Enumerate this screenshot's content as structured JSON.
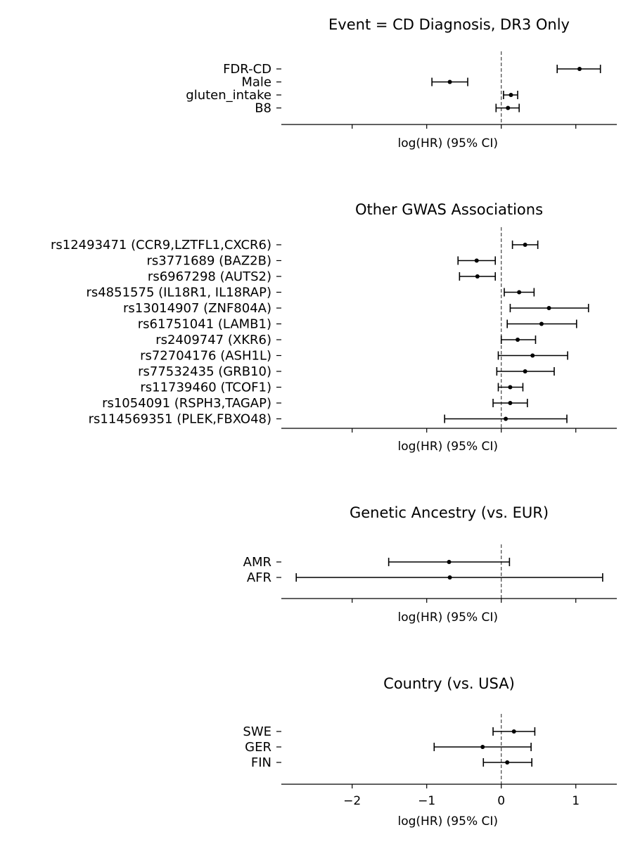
{
  "colors": {
    "marker": "#000000",
    "axis": "#000000",
    "reference_line": "#444444"
  },
  "chart_data": [
    {
      "type": "forest",
      "title": "Event = CD Diagnosis, DR3 Only",
      "xlabel": "log(HR) (95% CI)",
      "reference_line_x": 0,
      "xlim": [
        -2.95,
        1.55
      ],
      "show_tick_labels": false,
      "rows": [
        {
          "label": "FDR-CD",
          "estimate": 1.05,
          "lower": 0.75,
          "upper": 1.33
        },
        {
          "label": "Male",
          "estimate": -0.69,
          "lower": -0.93,
          "upper": -0.45
        },
        {
          "label": "gluten_intake",
          "estimate": 0.13,
          "lower": 0.03,
          "upper": 0.22
        },
        {
          "label": "B8",
          "estimate": 0.09,
          "lower": -0.07,
          "upper": 0.24
        }
      ]
    },
    {
      "type": "forest",
      "title": "Other GWAS Associations",
      "xlabel": "log(HR) (95% CI)",
      "reference_line_x": 0,
      "xlim": [
        -2.95,
        1.55
      ],
      "show_tick_labels": false,
      "rows": [
        {
          "label": "rs12493471 (CCR9,LZTFL1,CXCR6)",
          "estimate": 0.32,
          "lower": 0.15,
          "upper": 0.49
        },
        {
          "label": "rs3771689 (BAZ2B)",
          "estimate": -0.33,
          "lower": -0.58,
          "upper": -0.08
        },
        {
          "label": "rs6967298 (AUTS2)",
          "estimate": -0.32,
          "lower": -0.56,
          "upper": -0.08
        },
        {
          "label": "rs4851575 (IL18R1, IL18RAP)",
          "estimate": 0.24,
          "lower": 0.04,
          "upper": 0.44
        },
        {
          "label": "rs13014907 (ZNF804A)",
          "estimate": 0.64,
          "lower": 0.12,
          "upper": 1.17
        },
        {
          "label": "rs61751041 (LAMB1)",
          "estimate": 0.54,
          "lower": 0.08,
          "upper": 1.01
        },
        {
          "label": "rs2409747 (XKR6)",
          "estimate": 0.22,
          "lower": 0.0,
          "upper": 0.46
        },
        {
          "label": "rs72704176 (ASH1L)",
          "estimate": 0.42,
          "lower": -0.04,
          "upper": 0.89
        },
        {
          "label": "rs77532435 (GRB10)",
          "estimate": 0.32,
          "lower": -0.06,
          "upper": 0.71
        },
        {
          "label": "rs11739460 (TCOF1)",
          "estimate": 0.12,
          "lower": -0.04,
          "upper": 0.29
        },
        {
          "label": "rs1054091 (RSPH3,TAGAP)",
          "estimate": 0.12,
          "lower": -0.11,
          "upper": 0.35
        },
        {
          "label": "rs114569351 (PLEK,FBXO48)",
          "estimate": 0.06,
          "lower": -0.76,
          "upper": 0.88
        }
      ]
    },
    {
      "type": "forest",
      "title": "Genetic Ancestry (vs. EUR)",
      "xlabel": "log(HR) (95% CI)",
      "reference_line_x": 0,
      "xlim": [
        -2.95,
        1.55
      ],
      "show_tick_labels": false,
      "rows": [
        {
          "label": "AMR",
          "estimate": -0.7,
          "lower": -1.51,
          "upper": 0.11
        },
        {
          "label": "AFR",
          "estimate": -0.69,
          "lower": -2.75,
          "upper": 1.36
        }
      ]
    },
    {
      "type": "forest",
      "title": "Country (vs. USA)",
      "xlabel": "log(HR) (95% CI)",
      "reference_line_x": 0,
      "xlim": [
        -2.95,
        1.55
      ],
      "show_tick_labels": true,
      "xticks": [
        -2,
        -1,
        0,
        1
      ],
      "xtick_labels": [
        "−2",
        "−1",
        "0",
        "1"
      ],
      "rows": [
        {
          "label": "SWE",
          "estimate": 0.17,
          "lower": -0.11,
          "upper": 0.45
        },
        {
          "label": "GER",
          "estimate": -0.25,
          "lower": -0.9,
          "upper": 0.4
        },
        {
          "label": "FIN",
          "estimate": 0.08,
          "lower": -0.24,
          "upper": 0.41
        }
      ]
    }
  ]
}
